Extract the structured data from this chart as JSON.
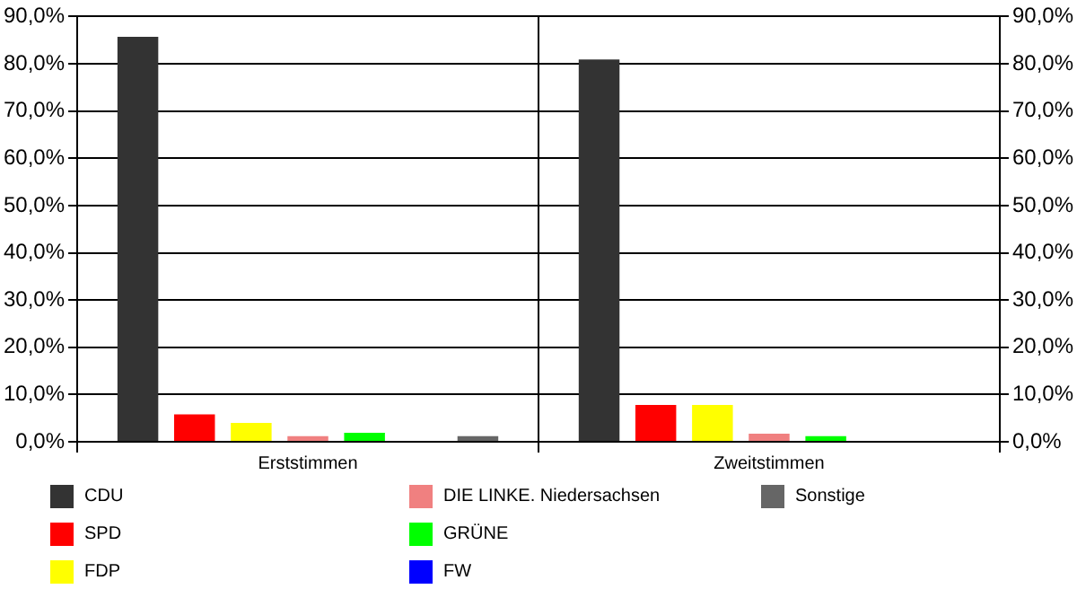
{
  "chart_data": {
    "type": "bar",
    "categories": [
      "Erststimmen",
      "Zweitstimmen"
    ],
    "series": [
      {
        "name": "CDU",
        "color": "#333333",
        "values": [
          85.7,
          80.9
        ]
      },
      {
        "name": "SPD",
        "color": "#ff0000",
        "values": [
          5.8,
          7.8
        ]
      },
      {
        "name": "FDP",
        "color": "#ffff00",
        "values": [
          4.0,
          7.8
        ]
      },
      {
        "name": "DIE LINKE. Niedersachsen",
        "color": "#f08080",
        "values": [
          1.2,
          1.7
        ]
      },
      {
        "name": "GRÜNE",
        "color": "#00ff00",
        "values": [
          1.9,
          1.2
        ]
      },
      {
        "name": "FW",
        "color": "#0000ff",
        "values": [
          null,
          null
        ]
      },
      {
        "name": "Sonstige",
        "color": "#666666",
        "values": [
          1.2,
          null
        ]
      }
    ],
    "ylim": [
      0,
      90
    ],
    "yticks": [
      {
        "value": 0,
        "label": "0,0%"
      },
      {
        "value": 10,
        "label": "10,0%"
      },
      {
        "value": 20,
        "label": "20,0%"
      },
      {
        "value": 30,
        "label": "30,0%"
      },
      {
        "value": 40,
        "label": "40,0%"
      },
      {
        "value": 50,
        "label": "50,0%"
      },
      {
        "value": 60,
        "label": "60,0%"
      },
      {
        "value": 70,
        "label": "70,0%"
      },
      {
        "value": 80,
        "label": "80,0%"
      },
      {
        "value": 90,
        "label": "90,0%"
      }
    ],
    "y2lim": [
      0,
      90
    ],
    "y2ticks": [
      {
        "value": 0,
        "label": "0,0%"
      },
      {
        "value": 10,
        "label": "10,0%"
      },
      {
        "value": 20,
        "label": "20,0%"
      },
      {
        "value": 30,
        "label": "30,0%"
      },
      {
        "value": 40,
        "label": "40,0%"
      },
      {
        "value": 50,
        "label": "50,0%"
      },
      {
        "value": 60,
        "label": "60,0%"
      },
      {
        "value": 70,
        "label": "70,0%"
      },
      {
        "value": 80,
        "label": "80,0%"
      },
      {
        "value": 90,
        "label": "90,0%"
      }
    ],
    "grid": "y",
    "legend": "bottom"
  }
}
